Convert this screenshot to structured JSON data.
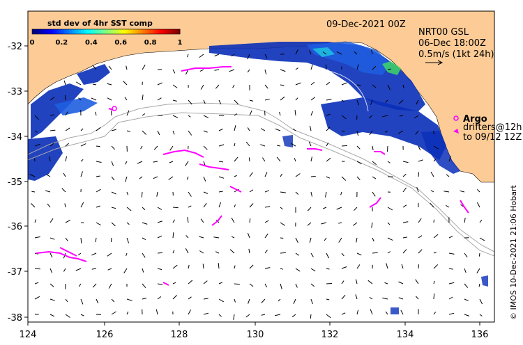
{
  "map": {
    "date_label": "09-Dec-2021 00Z",
    "product": {
      "line1": "NRT00 GSL",
      "line2": "06-Dec 18:00Z",
      "line3": "0.5m/s (1kt 24h)"
    },
    "legend": {
      "argo_label": "Argo",
      "drifters_line1": "drifters@12h",
      "drifters_line2": "to 09/12 12Z"
    },
    "colorbar": {
      "title": "std dev of 4hr SST comp",
      "ticks": [
        "0",
        "0.2",
        "0.4",
        "0.6",
        "0.8",
        "1"
      ],
      "colors": [
        "#00007f",
        "#0000ff",
        "#0080ff",
        "#00ffff",
        "#80ff80",
        "#ffff00",
        "#ff8000",
        "#ff0000",
        "#7f0000"
      ]
    },
    "x_ticks": [
      "124",
      "126",
      "128",
      "130",
      "132",
      "134",
      "136"
    ],
    "y_ticks": [
      "-32",
      "-33",
      "-34",
      "-35",
      "-36",
      "-37",
      "-38"
    ],
    "credit": "© IMOS 10-Dec-2021 21:06 Hobart",
    "colors": {
      "land": "#fccb96",
      "drifter": "#ff00ff",
      "contour": "#a8a8a8",
      "arrow": "#000000"
    }
  }
}
